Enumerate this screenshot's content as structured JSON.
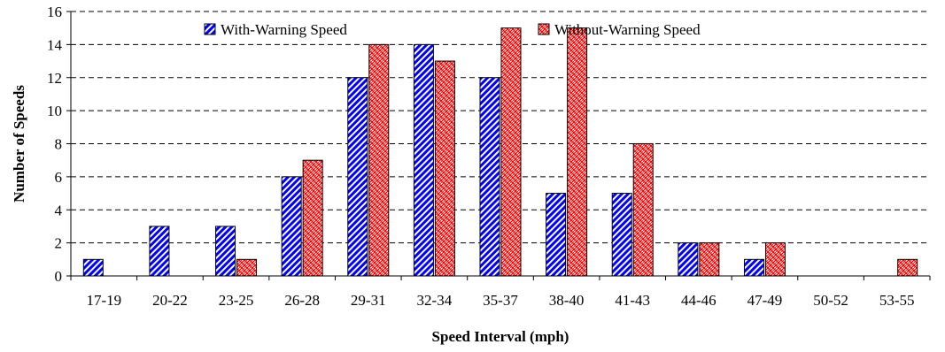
{
  "chart_data": {
    "type": "bar",
    "title": "",
    "xlabel": "Speed Interval (mph)",
    "ylabel": "Number of Speeds",
    "categories": [
      "17-19",
      "20-22",
      "23-25",
      "26-28",
      "29-31",
      "32-34",
      "35-37",
      "38-40",
      "41-43",
      "44-46",
      "47-49",
      "50-52",
      "53-55"
    ],
    "series": [
      {
        "name": "With-Warning Speed",
        "values": [
          1,
          3,
          3,
          6,
          12,
          14,
          12,
          5,
          5,
          2,
          1,
          0,
          0
        ],
        "color": "#0000ff",
        "pattern": "diagonal-hatch"
      },
      {
        "name": "Without-Warning Speed",
        "values": [
          0,
          0,
          1,
          7,
          14,
          13,
          15,
          15,
          8,
          2,
          2,
          0,
          1
        ],
        "color": "#ff0000",
        "pattern": "crosshatch"
      }
    ],
    "ylim": [
      0,
      16
    ],
    "yticks": [
      0,
      2,
      4,
      6,
      8,
      10,
      12,
      14,
      16
    ],
    "grid": "horizontal-dashed",
    "legend": "top"
  }
}
